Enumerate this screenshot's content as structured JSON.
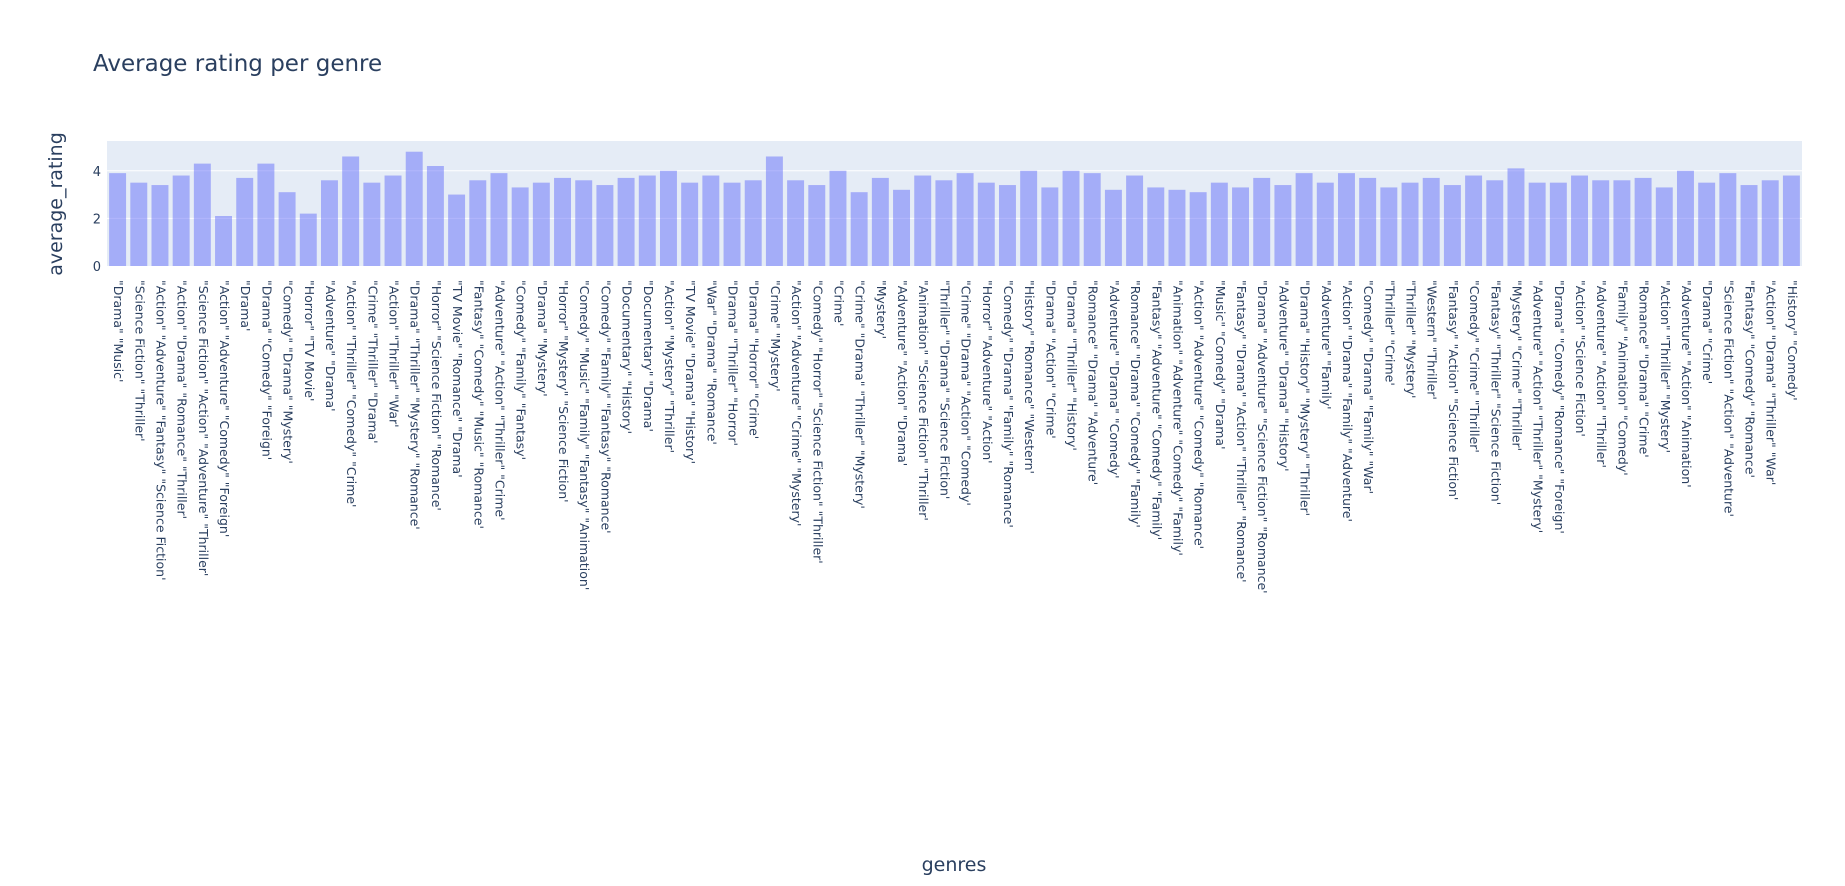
{
  "chart_data": {
    "type": "bar",
    "title": "Average rating per genre",
    "xlabel": "genres",
    "ylabel": "average_rating",
    "ylim": [
      0,
      5.25
    ],
    "y_ticks": [
      0,
      2,
      4
    ],
    "grid": true,
    "bar_color": "#636efa",
    "bar_opacity": 0.5,
    "plot_bg": "#e5ecf6",
    "text_color": "#2a3f5f",
    "x_labels_visible": [
      "\"Drama\" \"Music'",
      "\"Science Fiction\" \"Thriller'",
      "\"Action\" \"Adventure\" \"Fantasy\" \"Science Fiction'",
      "\"Action\" \"Drama\" \"Romance\" \"Thriller'",
      "\"Science Fiction\" \"Action\" \"Adventure\" \"Thriller'",
      "\"Action\" \"Adventure\" \"Comedy\" \"Foreign'",
      "\"Drama'",
      "\"Drama\" \"Comedy\" \"Foreign'",
      "\"Comedy\" \"Drama\" \"Mystery'",
      "\"Horror\" \"TV Movie'",
      "\"Adventure\" \"Drama'",
      "\"Action\" \"Thriller\" \"Comedy\" \"Crime'",
      "\"Crime\" \"Thriller\" \"Drama'",
      "\"Action\" \"Thriller\" \"War'",
      "\"Drama\" \"Thriller\" \"Mystery\" \"Romance'",
      "\"Horror\" \"Science Fiction\" \"Romance'",
      "\"TV Movie\" \"Romance\" \"Drama'",
      "\"Fantasy\" \"Comedy\" \"Music\" \"Romance'",
      "\"Adventure\" \"Action\" \"Thriller\" \"Crime'",
      "\"Comedy\" \"Family\" \"Fantasy'",
      "\"Drama\" \"Mystery'",
      "\"Horror\" \"Mystery\" \"Science Fiction'",
      "\"Comedy\" \"Music\" \"Family\" \"Fantasy\" \"Animation'",
      "\"Comedy\" \"Family\" \"Fantasy\" \"Romance'",
      "\"Documentary\" \"History'",
      "\"Documentary\" \"Drama'",
      "\"Action\" \"Mystery\" \"Thriller'",
      "\"TV Movie\" \"Drama\" \"History'",
      "\"War\" \"Drama\" \"Romance'",
      "\"Drama\" \"Thriller\" \"Horror'",
      "\"Drama\" \"Horror\" \"Crime'",
      "\"Crime\" \"Mystery'",
      "\"Action\" \"Adventure\" \"Crime\" \"Mystery'",
      "\"Comedy\" \"Horror\" \"Science Fiction\" \"Thriller'",
      "\"Crime'",
      "\"Crime\" \"Drama\" \"Thriller\" \"Mystery'",
      "\"Mystery'",
      "\"Adventure\" \"Action\" \"Drama'",
      "\"Animation\" \"Science Fiction\" \"Thriller'",
      "\"Thriller\" \"Drama\" \"Science Fiction'",
      "\"Crime\" \"Drama\" \"Action\" \"Comedy'",
      "\"Horror\" \"Adventure\" \"Action'",
      "\"Comedy\" \"Drama\" \"Family\" \"Romance'",
      "\"History\" \"Romance\" \"Western'",
      "\"Drama\" \"Action\" \"Crime'",
      "\"Drama\" \"Thriller\" \"History'",
      "\"Romance\" \"Drama\" \"Adventure'",
      "\"Adventure\" \"Drama\" \"Comedy'",
      "\"Romance\" \"Drama\" \"Comedy\" \"Family'",
      "\"Fantasy\" \"Adventure\" \"Comedy\" \"Family'",
      "\"Animation\" \"Adventure\" \"Comedy\" \"Family'",
      "\"Action\" \"Adventure\" \"Comedy\" \"Romance'",
      "\"Music\" \"Comedy\" \"Drama'",
      "\"Fantasy\" \"Drama\" \"Action\" \"Thriller\" \"Romance'",
      "\"Drama\" \"Adventure\" \"Science Fiction\" \"Romance'",
      "\"Adventure\" \"Drama\" \"History'",
      "\"Drama\" \"History\" \"Mystery\" \"Thriller'",
      "\"Adventure\" \"Family'",
      "\"Action\" \"Drama\" \"Family\" \"Adventure'",
      "\"Comedy\" \"Drama\" \"Family\" \"War'",
      "\"Thriller\" \"Crime'",
      "\"Thriller\" \"Mystery'",
      "\"Western\" \"Thriller'",
      "\"Fantasy\" \"Action\" \"Science Fiction'",
      "\"Comedy\" \"Crime\" \"Thriller'",
      "\"Fantasy\" \"Thriller\" \"Science Fiction'",
      "\"Mystery\" \"Crime\" \"Thriller'",
      "\"Adventure\" \"Action\" \"Thriller\" \"Mystery'",
      "\"Drama\" \"Comedy\" \"Romance\" \"Foreign'",
      "\"Action\" \"Science Fiction'",
      "\"Adventure\" \"Action\" \"Thriller'",
      "\"Family\" \"Animation\" \"Comedy'",
      "\"Romance\" \"Drama\" \"Crime'",
      "\"Action\" \"Thriller\" \"Mystery'",
      "\"Adventure\" \"Action\" \"Animation'",
      "\"Drama\" \"Crime'",
      "\"Science Fiction\" \"Action\" \"Adventure'",
      "\"Fantasy\" \"Comedy\" \"Romance'",
      "\"Action\" \"Drama\" \"Thriller\" \"War'",
      "\"History\" \"Comedy'"
    ],
    "values": [
      3.9,
      3.5,
      3.4,
      3.8,
      4.3,
      2.1,
      3.7,
      4.3,
      3.1,
      2.2,
      3.6,
      4.6,
      3.5,
      3.8,
      4.8,
      4.2,
      3.0,
      3.6,
      3.9,
      3.3,
      3.5,
      3.7,
      3.6,
      3.4,
      3.7,
      3.8,
      4.0,
      3.5,
      3.8,
      3.5,
      3.6,
      4.6,
      3.6,
      3.4,
      4.0,
      3.1,
      3.7,
      3.2,
      3.8,
      3.6,
      3.9,
      3.5,
      3.4,
      4.0,
      3.3,
      4.0,
      3.9,
      3.2,
      3.8,
      3.3,
      3.2,
      3.1,
      3.5,
      3.3,
      3.7,
      3.4,
      3.9,
      3.5,
      3.9,
      3.7,
      3.3,
      3.5,
      3.7,
      3.4,
      3.8,
      3.6,
      4.1,
      3.5,
      3.5,
      3.8,
      3.6,
      3.6,
      3.7,
      3.3,
      4.0,
      3.5,
      3.9,
      3.4,
      3.6,
      3.8
    ]
  }
}
